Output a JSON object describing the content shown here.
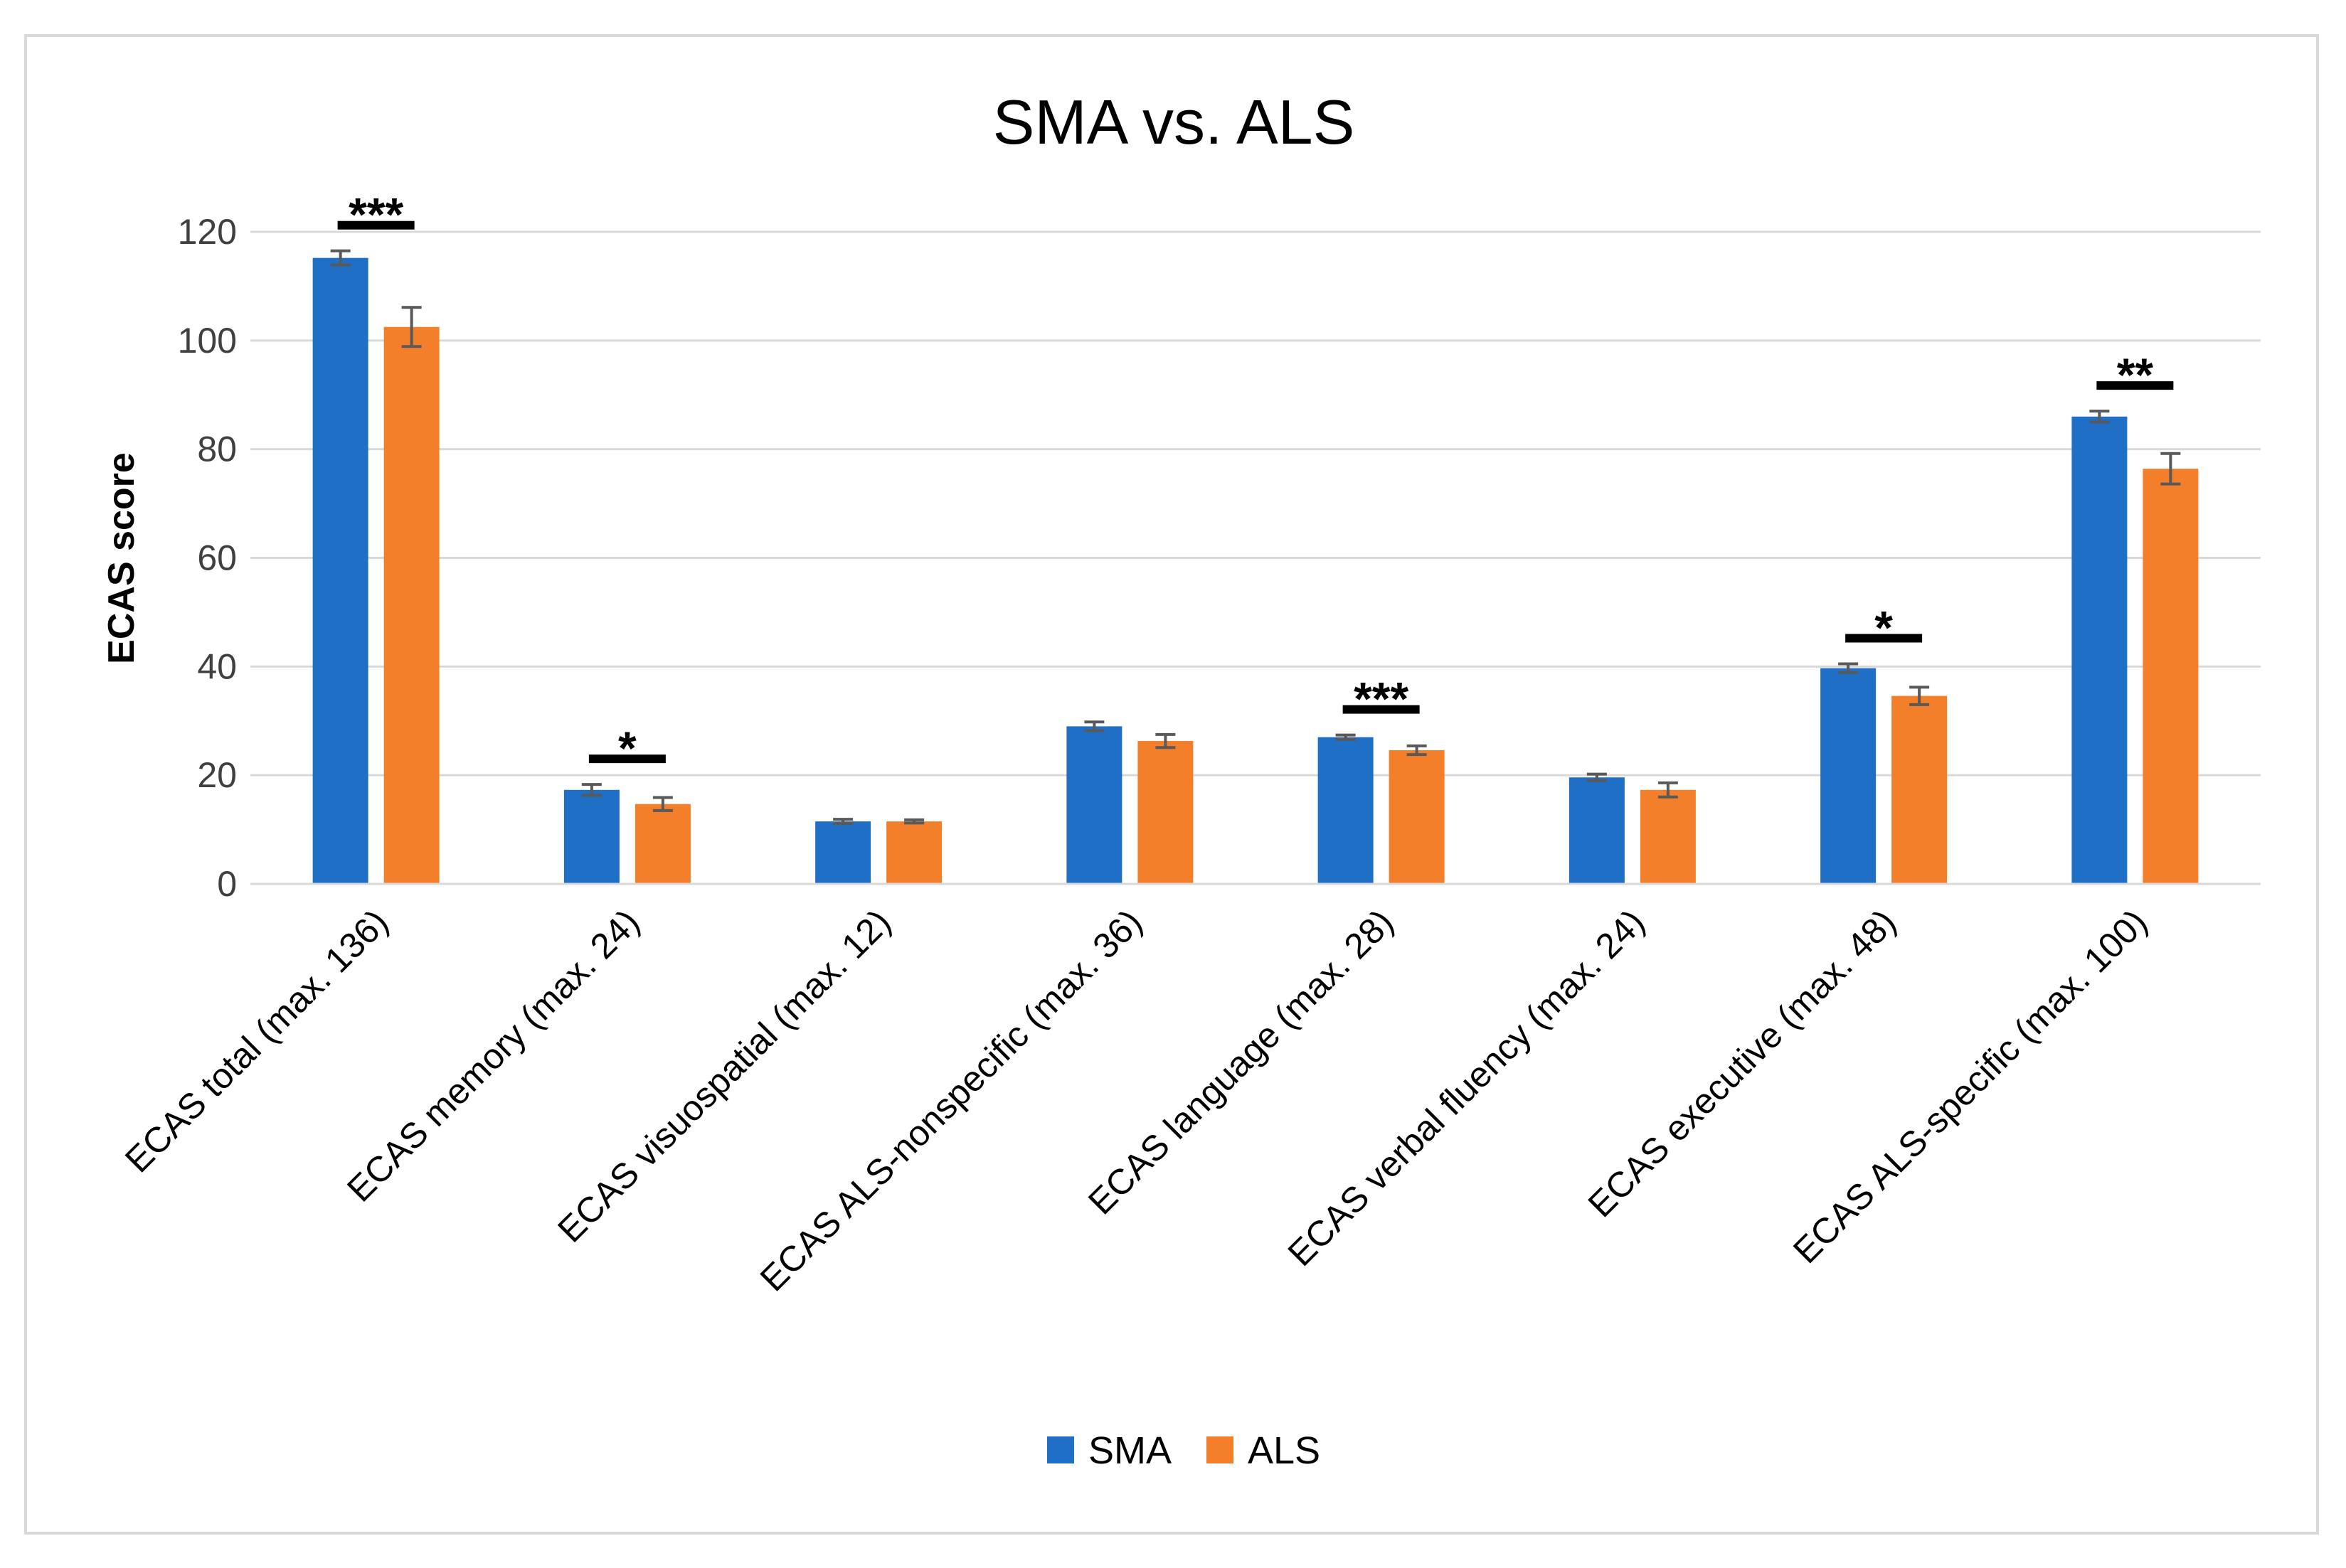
{
  "chart_data": {
    "type": "bar",
    "title": "SMA vs. ALS",
    "ylabel": "ECAS score",
    "xlabel": "",
    "ylim": [
      0,
      120
    ],
    "yticks": [
      0,
      20,
      40,
      60,
      80,
      100,
      120
    ],
    "grid": true,
    "legend_position": "bottom",
    "categories": [
      "ECAS total (max. 136)",
      "ECAS memory (max. 24)",
      "ECAS visuospatial (max. 12)",
      "ECAS ALS-nonspecific (max. 36)",
      "ECAS language (max. 28)",
      "ECAS verbal fluency (max. 24)",
      "ECAS executive (max. 48)",
      "ECAS ALS-specific (max. 100)"
    ],
    "series": [
      {
        "name": "SMA",
        "color": "#1f6fc6",
        "values": [
          115.2,
          17.3,
          11.5,
          29.0,
          27.0,
          19.6,
          39.7,
          86.0
        ],
        "errors": [
          1.3,
          1.0,
          0.4,
          0.8,
          0.4,
          0.6,
          0.8,
          1.0
        ]
      },
      {
        "name": "ALS",
        "color": "#f47f2a",
        "values": [
          102.5,
          14.7,
          11.5,
          26.3,
          24.6,
          17.3,
          34.6,
          76.4
        ],
        "errors": [
          3.6,
          1.2,
          0.3,
          1.2,
          0.8,
          1.3,
          1.6,
          2.8
        ]
      }
    ],
    "significance": [
      {
        "category_index": 0,
        "label": "***"
      },
      {
        "category_index": 1,
        "label": "*"
      },
      {
        "category_index": 4,
        "label": "***"
      },
      {
        "category_index": 6,
        "label": "*"
      },
      {
        "category_index": 7,
        "label": "**"
      }
    ]
  }
}
